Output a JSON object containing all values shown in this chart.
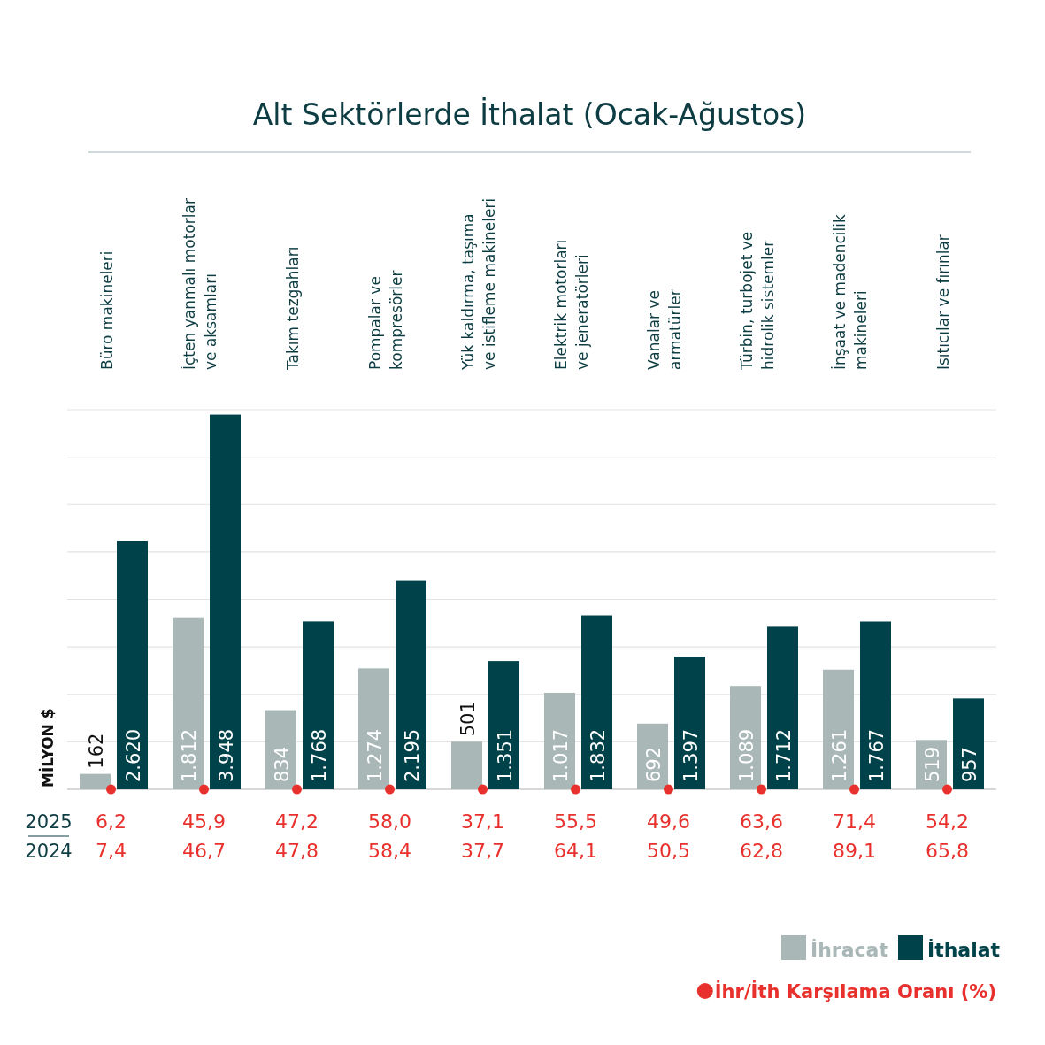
{
  "chart_data": {
    "type": "bar",
    "title": "Alt Sektörlerde İthalat (Ocak-Ağustos)",
    "ylabel": "MİLYON $",
    "categories": [
      "Büro makineleri",
      "İçten yanmalı motorlar\nve aksamları",
      "Takım tezgahları",
      "Pompalar ve\nkompresörler",
      "Yük kaldırma, taşıma\nve istifleme makineleri",
      "Elektrik motorları\nve jeneratörleri",
      "Vanalar ve\narmatürler",
      "Türbin, turbojet ve\nhidrolik sistemler",
      "İnşaat ve madencilik\nmakineleri",
      "Isıtıcılar ve fırınlar"
    ],
    "series": [
      {
        "name": "İhracat",
        "color": "#a9b8b7",
        "values": [
          162,
          1812,
          834,
          1274,
          501,
          1017,
          692,
          1089,
          1261,
          519
        ],
        "value_labels": [
          "162",
          "1.812",
          "834",
          "1.274",
          "501",
          "1.017",
          "692",
          "1.089",
          "1.261",
          "519"
        ]
      },
      {
        "name": "İthalat",
        "color": "#00424a",
        "values": [
          2620,
          3948,
          1768,
          2195,
          1351,
          1832,
          1397,
          1712,
          1767,
          957
        ],
        "value_labels": [
          "2.620",
          "3.948",
          "1.768",
          "2.195",
          "1.351",
          "1.832",
          "1.397",
          "1.712",
          "1.767",
          "957"
        ]
      }
    ],
    "ylim": [
      0,
      4000
    ],
    "yticks": [
      {
        "value": 0,
        "label": null
      },
      {
        "value": 500,
        "label": null
      },
      {
        "value": 1000,
        "label": null
      },
      {
        "value": 1500,
        "label": null
      },
      {
        "value": 2000,
        "label": null
      },
      {
        "value": 2500,
        "label": null
      },
      {
        "value": 3000,
        "label": null
      },
      {
        "value": 3500,
        "label": null
      },
      {
        "value": 4000,
        "label": null
      }
    ],
    "grid": "y",
    "tick_labels": "x",
    "legend": "bottom right",
    "annotations": [
      "2025",
      "6,2",
      "45,9",
      "47,2",
      "58,0",
      "37,1",
      "55,5",
      "49,6",
      "63,6",
      "71,4",
      "54,2",
      "2024",
      "7,4",
      "46,7",
      "47,8",
      "58,4",
      "37,7",
      "64,1",
      "50,5",
      "62,8",
      "89,1",
      "65,8",
      "İhr/İth Karşılama Oranı (%)"
    ]
  }
}
